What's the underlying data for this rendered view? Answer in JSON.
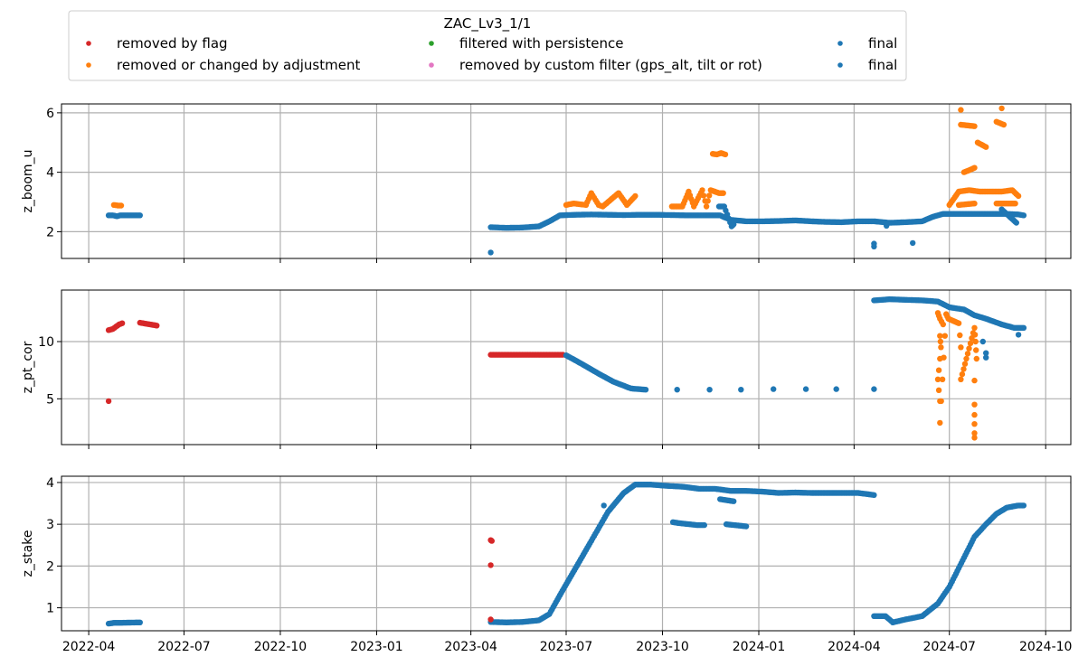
{
  "legend": {
    "title": "ZAC_Lv3_1/1",
    "entries": [
      {
        "label": "removed by flag",
        "color": "#d62728"
      },
      {
        "label": "removed or changed by adjustment",
        "color": "#ff7f0e"
      },
      {
        "label": "filtered with persistence",
        "color": "#2ca02c"
      },
      {
        "label": "removed by custom filter (gps_alt, tilt or rot)",
        "color": "#e377c2"
      },
      {
        "label": "final",
        "color": "#1f77b4"
      },
      {
        "label": "final",
        "color": "#1f77b4"
      }
    ]
  },
  "chart_data": [
    {
      "type": "scatter",
      "ylabel": "z_boom_u",
      "ylim": [
        1.1,
        6.3
      ],
      "yticks": [
        2,
        4,
        6
      ],
      "xlim": [
        "2022-03-06",
        "2024-10-25"
      ],
      "xticks": [
        "2022-04",
        "2022-07",
        "2022-10",
        "2023-01",
        "2023-04",
        "2023-07",
        "2023-10",
        "2024-01",
        "2024-04",
        "2024-07",
        "2024-10"
      ],
      "grid": true,
      "series": [
        {
          "color": "#1f77b4",
          "points": [
            [
              "2022-04-20",
              2.55
            ],
            [
              "2022-04-24",
              2.55
            ],
            [
              "2022-04-28",
              2.52
            ],
            [
              "2022-05-01",
              2.55
            ],
            [
              "2022-05-20",
              2.55
            ],
            [
              "2023-04-20",
              2.15
            ],
            [
              "2023-05-05",
              2.13
            ],
            [
              "2023-05-20",
              2.14
            ],
            [
              "2023-06-05",
              2.18
            ],
            [
              "2023-06-15",
              2.35
            ],
            [
              "2023-06-25",
              2.55
            ],
            [
              "2023-07-10",
              2.57
            ],
            [
              "2023-07-25",
              2.58
            ],
            [
              "2023-08-10",
              2.57
            ],
            [
              "2023-08-25",
              2.56
            ],
            [
              "2023-09-10",
              2.57
            ],
            [
              "2023-09-25",
              2.57
            ],
            [
              "2023-10-10",
              2.56
            ],
            [
              "2023-10-25",
              2.55
            ],
            [
              "2023-11-10",
              2.55
            ],
            [
              "2023-11-25",
              2.55
            ],
            [
              "2023-12-05",
              2.4
            ],
            [
              "2023-12-20",
              2.35
            ],
            [
              "2024-01-05",
              2.35
            ],
            [
              "2024-01-20",
              2.36
            ],
            [
              "2024-02-05",
              2.38
            ],
            [
              "2024-02-20",
              2.35
            ],
            [
              "2024-03-05",
              2.33
            ],
            [
              "2024-03-20",
              2.32
            ],
            [
              "2024-04-05",
              2.35
            ],
            [
              "2024-04-20",
              2.35
            ],
            [
              "2024-05-05",
              2.3
            ],
            [
              "2024-05-20",
              2.32
            ],
            [
              "2024-06-05",
              2.35
            ],
            [
              "2024-06-15",
              2.5
            ],
            [
              "2024-06-25",
              2.6
            ],
            [
              "2024-07-10",
              2.6
            ],
            [
              "2024-07-25",
              2.6
            ],
            [
              "2024-08-10",
              2.6
            ],
            [
              "2024-08-25",
              2.6
            ],
            [
              "2024-09-05",
              2.58
            ],
            [
              "2024-09-10",
              2.55
            ],
            [
              "2023-04-20",
              1.3
            ],
            [
              "2024-04-20",
              1.5
            ],
            [
              "2024-04-20",
              1.6
            ],
            [
              "2024-05-27",
              1.62
            ],
            [
              "2024-05-02",
              2.2
            ],
            [
              "2023-11-24",
              2.85
            ],
            [
              "2023-11-29",
              2.85
            ],
            [
              "2023-12-06",
              2.18
            ],
            [
              "2023-12-08",
              2.25
            ],
            [
              "2024-08-20",
              2.75
            ],
            [
              "2024-09-03",
              2.3
            ]
          ]
        },
        {
          "color": "#ff7f0e",
          "points": [
            [
              "2022-04-25",
              2.9
            ],
            [
              "2022-04-29",
              2.88
            ],
            [
              "2022-05-02",
              2.88
            ],
            [
              "2023-07-01",
              2.9
            ],
            [
              "2023-07-08",
              2.95
            ],
            [
              "2023-07-20",
              2.9
            ],
            [
              "2023-07-25",
              3.3
            ],
            [
              "2023-08-01",
              2.9
            ],
            [
              "2023-08-05",
              2.85
            ],
            [
              "2023-08-20",
              3.3
            ],
            [
              "2023-08-28",
              2.9
            ],
            [
              "2023-09-05",
              3.2
            ],
            [
              "2023-10-10",
              2.85
            ],
            [
              "2023-10-20",
              2.85
            ],
            [
              "2023-10-26",
              3.35
            ],
            [
              "2023-10-31",
              2.85
            ],
            [
              "2023-11-08",
              3.4
            ],
            [
              "2023-11-12",
              2.85
            ],
            [
              "2023-11-16",
              3.4
            ],
            [
              "2023-11-20",
              3.35
            ],
            [
              "2023-11-24",
              3.3
            ],
            [
              "2023-11-28",
              3.3
            ],
            [
              "2023-11-18",
              4.62
            ],
            [
              "2023-11-22",
              4.6
            ],
            [
              "2023-11-26",
              4.65
            ],
            [
              "2023-11-30",
              4.6
            ],
            [
              "2024-07-01",
              2.9
            ],
            [
              "2024-07-10",
              3.35
            ],
            [
              "2024-07-20",
              3.4
            ],
            [
              "2024-07-30",
              3.35
            ],
            [
              "2024-08-10",
              3.35
            ],
            [
              "2024-08-20",
              3.35
            ],
            [
              "2024-08-30",
              3.4
            ],
            [
              "2024-09-05",
              3.2
            ],
            [
              "2024-07-10",
              2.9
            ],
            [
              "2024-07-25",
              2.95
            ],
            [
              "2024-08-15",
              2.95
            ],
            [
              "2024-09-02",
              2.95
            ],
            [
              "2024-07-12",
              6.1
            ],
            [
              "2024-08-20",
              6.15
            ],
            [
              "2024-07-12",
              5.6
            ],
            [
              "2024-07-25",
              5.55
            ],
            [
              "2024-08-15",
              5.7
            ],
            [
              "2024-08-22",
              5.6
            ],
            [
              "2024-07-28",
              5.0
            ],
            [
              "2024-08-05",
              4.85
            ],
            [
              "2024-07-15",
              4.0
            ],
            [
              "2024-07-22",
              4.1
            ],
            [
              "2024-07-25",
              4.15
            ]
          ]
        }
      ]
    },
    {
      "type": "scatter",
      "ylabel": "z_pt_cor",
      "ylim": [
        1.0,
        14.5
      ],
      "yticks": [
        5,
        10
      ],
      "xlim": [
        "2022-03-06",
        "2024-10-25"
      ],
      "grid": true,
      "series": [
        {
          "color": "#d62728",
          "points": [
            [
              "2022-04-20",
              11.0
            ],
            [
              "2022-04-24",
              11.1
            ],
            [
              "2022-04-27",
              11.3
            ],
            [
              "2022-04-30",
              11.5
            ],
            [
              "2022-05-03",
              11.6
            ],
            [
              "2022-04-20",
              4.8
            ],
            [
              "2022-05-20",
              11.65
            ],
            [
              "2022-06-05",
              11.4
            ],
            [
              "2023-04-20",
              8.85
            ],
            [
              "2023-05-05",
              8.85
            ],
            [
              "2023-05-20",
              8.85
            ],
            [
              "2023-06-05",
              8.85
            ],
            [
              "2023-06-20",
              8.85
            ],
            [
              "2023-06-28",
              8.85
            ]
          ]
        },
        {
          "color": "#1f77b4",
          "points": [
            [
              "2023-07-01",
              8.8
            ],
            [
              "2023-07-15",
              8.1
            ],
            [
              "2023-08-01",
              7.2
            ],
            [
              "2023-08-15",
              6.5
            ],
            [
              "2023-09-01",
              5.9
            ],
            [
              "2023-09-15",
              5.8
            ],
            [
              "2023-10-15",
              5.8
            ],
            [
              "2023-11-15",
              5.8
            ],
            [
              "2023-12-15",
              5.8
            ],
            [
              "2024-01-15",
              5.85
            ],
            [
              "2024-02-15",
              5.85
            ],
            [
              "2024-03-15",
              5.85
            ],
            [
              "2024-04-20",
              5.85
            ],
            [
              "2024-04-20",
              13.6
            ],
            [
              "2024-05-05",
              13.7
            ],
            [
              "2024-05-20",
              13.65
            ],
            [
              "2024-06-05",
              13.6
            ],
            [
              "2024-06-20",
              13.5
            ],
            [
              "2024-07-01",
              13.0
            ],
            [
              "2024-07-15",
              12.8
            ],
            [
              "2024-07-25",
              12.3
            ],
            [
              "2024-08-05",
              12.0
            ],
            [
              "2024-08-20",
              11.5
            ],
            [
              "2024-09-01",
              11.2
            ],
            [
              "2024-09-10",
              11.2
            ],
            [
              "2024-08-05",
              9.0
            ],
            [
              "2024-08-05",
              8.6
            ],
            [
              "2024-08-02",
              10.0
            ],
            [
              "2024-09-05",
              10.6
            ]
          ]
        },
        {
          "color": "#ff7f0e",
          "points": [
            [
              "2024-06-20",
              12.5
            ],
            [
              "2024-06-22",
              12.0
            ],
            [
              "2024-06-25",
              11.5
            ],
            [
              "2024-06-22",
              10.5
            ],
            [
              "2024-06-23",
              9.5
            ],
            [
              "2024-06-22",
              8.5
            ],
            [
              "2024-06-21",
              7.5
            ],
            [
              "2024-06-20",
              6.7
            ],
            [
              "2024-06-22",
              4.8
            ],
            [
              "2024-06-22",
              2.9
            ],
            [
              "2024-06-28",
              12.4
            ],
            [
              "2024-06-30",
              12.0
            ],
            [
              "2024-07-10",
              11.6
            ],
            [
              "2024-07-12",
              9.5
            ],
            [
              "2024-07-12",
              6.7
            ],
            [
              "2024-07-25",
              11.2
            ],
            [
              "2024-07-26",
              10.0
            ],
            [
              "2024-07-27",
              8.5
            ],
            [
              "2024-07-25",
              6.6
            ],
            [
              "2024-07-25",
              4.5
            ],
            [
              "2024-07-25",
              3.6
            ],
            [
              "2024-07-25",
              2.8
            ],
            [
              "2024-07-25",
              2.0
            ],
            [
              "2024-07-25",
              1.6
            ]
          ]
        }
      ]
    },
    {
      "type": "scatter",
      "ylabel": "z_stake",
      "ylim": [
        0.45,
        4.15
      ],
      "yticks": [
        1,
        2,
        3,
        4
      ],
      "xlim": [
        "2022-03-06",
        "2024-10-25"
      ],
      "xticks": [
        "2022-04",
        "2022-07",
        "2022-10",
        "2023-01",
        "2023-04",
        "2023-07",
        "2023-10",
        "2024-01",
        "2024-04",
        "2024-07",
        "2024-10"
      ],
      "grid": true,
      "series": [
        {
          "color": "#1f77b4",
          "points": [
            [
              "2022-04-20",
              0.62
            ],
            [
              "2022-04-25",
              0.64
            ],
            [
              "2022-04-30",
              0.64
            ],
            [
              "2022-05-20",
              0.65
            ],
            [
              "2023-04-20",
              0.66
            ],
            [
              "2023-05-05",
              0.65
            ],
            [
              "2023-05-20",
              0.66
            ],
            [
              "2023-06-05",
              0.7
            ],
            [
              "2023-06-15",
              0.85
            ],
            [
              "2023-06-25",
              1.3
            ],
            [
              "2023-07-10",
              1.95
            ],
            [
              "2023-07-25",
              2.6
            ],
            [
              "2023-08-10",
              3.3
            ],
            [
              "2023-08-25",
              3.75
            ],
            [
              "2023-09-05",
              3.95
            ],
            [
              "2023-09-20",
              3.95
            ],
            [
              "2023-10-05",
              3.92
            ],
            [
              "2023-10-20",
              3.9
            ],
            [
              "2023-11-05",
              3.85
            ],
            [
              "2023-11-20",
              3.85
            ],
            [
              "2023-12-05",
              3.8
            ],
            [
              "2023-12-20",
              3.8
            ],
            [
              "2024-01-05",
              3.78
            ],
            [
              "2024-01-20",
              3.75
            ],
            [
              "2024-02-05",
              3.76
            ],
            [
              "2024-02-20",
              3.75
            ],
            [
              "2024-03-05",
              3.75
            ],
            [
              "2024-03-20",
              3.75
            ],
            [
              "2024-04-05",
              3.75
            ],
            [
              "2024-04-20",
              3.7
            ],
            [
              "2024-04-20",
              0.8
            ],
            [
              "2024-05-01",
              0.8
            ],
            [
              "2024-05-08",
              0.65
            ],
            [
              "2024-05-20",
              0.72
            ],
            [
              "2024-06-05",
              0.8
            ],
            [
              "2024-06-20",
              1.1
            ],
            [
              "2024-07-01",
              1.5
            ],
            [
              "2024-07-15",
              2.2
            ],
            [
              "2024-07-25",
              2.7
            ],
            [
              "2024-08-05",
              3.0
            ],
            [
              "2024-08-15",
              3.25
            ],
            [
              "2024-08-25",
              3.4
            ],
            [
              "2024-09-05",
              3.45
            ],
            [
              "2024-09-10",
              3.45
            ],
            [
              "2023-08-06",
              3.45
            ],
            [
              "2023-10-11",
              3.05
            ],
            [
              "2023-10-16",
              3.03
            ],
            [
              "2023-11-03",
              2.98
            ],
            [
              "2023-11-10",
              2.98
            ],
            [
              "2023-12-01",
              3.0
            ],
            [
              "2023-12-20",
              2.95
            ],
            [
              "2023-11-25",
              3.6
            ],
            [
              "2023-12-08",
              3.55
            ]
          ]
        },
        {
          "color": "#d62728",
          "points": [
            [
              "2023-04-20",
              2.62
            ],
            [
              "2023-04-21",
              2.6
            ],
            [
              "2023-04-20",
              2.02
            ],
            [
              "2023-04-20",
              0.72
            ]
          ]
        }
      ]
    }
  ]
}
